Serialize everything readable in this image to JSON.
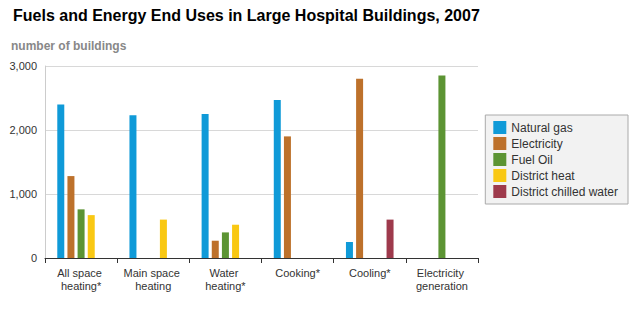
{
  "chart_data": {
    "type": "bar",
    "title": "Fuels and Energy End Uses in Large Hospital Buildings, 2007",
    "y_label": "number of buildings",
    "categories": [
      "All space heating*",
      "Main space heating",
      "Water heating*",
      "Cooking*",
      "Cooling*",
      "Electricity generation"
    ],
    "series": [
      {
        "name": "Natural gas",
        "color": "#0f9ad8",
        "values": [
          2400,
          2230,
          2250,
          2470,
          250,
          null
        ]
      },
      {
        "name": "Electricity",
        "color": "#bd712b",
        "values": [
          1280,
          null,
          270,
          1900,
          2800,
          null
        ]
      },
      {
        "name": "Fuel Oil",
        "color": "#5c9433",
        "values": [
          760,
          null,
          400,
          null,
          null,
          2850
        ]
      },
      {
        "name": "District heat",
        "color": "#f9c813",
        "values": [
          670,
          600,
          520,
          null,
          null,
          null
        ]
      },
      {
        "name": "District chilled water",
        "color": "#9e3a4c",
        "values": [
          null,
          null,
          null,
          null,
          600,
          null
        ]
      }
    ],
    "ylim": [
      0,
      3000
    ],
    "yticks": [
      0,
      {
        "value": 1000,
        "label": "1,000"
      },
      {
        "value": 2000,
        "label": "2,000"
      },
      {
        "value": 3000,
        "label": "3,000"
      }
    ],
    "grid": true,
    "legend": "right"
  }
}
